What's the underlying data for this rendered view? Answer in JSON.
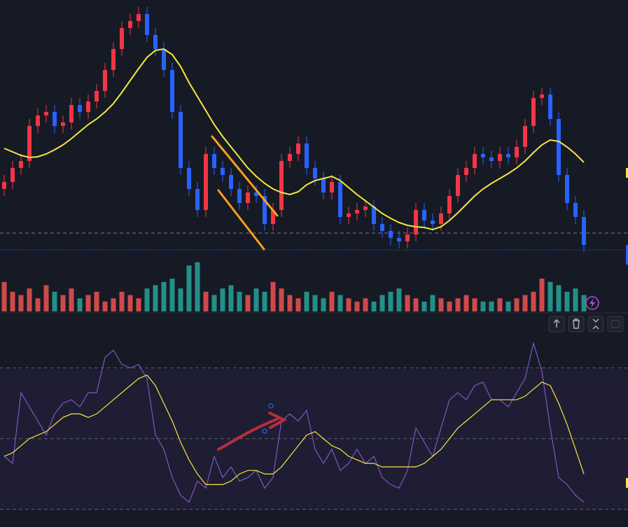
{
  "chart_data": {
    "type": "candlestick",
    "open": [
      100,
      110,
      130,
      140,
      190,
      205,
      210,
      190,
      195,
      220,
      210,
      225,
      240,
      270,
      300,
      330,
      340,
      350,
      320,
      300,
      270,
      210,
      130,
      100,
      70,
      150,
      130,
      120,
      100,
      80,
      95,
      90,
      50,
      70,
      140,
      150,
      165,
      130,
      115,
      95,
      110,
      60,
      65,
      70,
      75,
      50,
      40,
      30,
      25,
      35,
      70,
      55,
      50,
      65,
      90,
      120,
      130,
      150,
      145,
      140,
      150,
      145,
      160,
      190,
      230,
      235,
      200,
      120,
      80,
      60
    ],
    "high": [
      120,
      140,
      150,
      200,
      215,
      220,
      220,
      205,
      230,
      230,
      235,
      250,
      280,
      310,
      340,
      350,
      360,
      360,
      330,
      310,
      280,
      220,
      140,
      110,
      160,
      160,
      140,
      130,
      110,
      105,
      105,
      100,
      80,
      150,
      160,
      175,
      175,
      140,
      125,
      120,
      120,
      75,
      80,
      85,
      85,
      60,
      50,
      40,
      45,
      80,
      80,
      65,
      75,
      100,
      130,
      140,
      160,
      160,
      155,
      160,
      160,
      170,
      200,
      240,
      245,
      245,
      210,
      130,
      90,
      70
    ],
    "low": [
      90,
      100,
      120,
      130,
      180,
      195,
      180,
      180,
      185,
      200,
      200,
      215,
      230,
      260,
      290,
      320,
      330,
      310,
      290,
      260,
      200,
      120,
      90,
      60,
      60,
      120,
      110,
      90,
      70,
      70,
      80,
      40,
      40,
      60,
      130,
      140,
      120,
      105,
      85,
      85,
      50,
      50,
      55,
      60,
      40,
      30,
      20,
      15,
      15,
      25,
      45,
      40,
      40,
      55,
      80,
      110,
      120,
      135,
      130,
      130,
      135,
      135,
      150,
      180,
      220,
      190,
      110,
      70,
      50,
      10
    ],
    "close": [
      110,
      130,
      140,
      190,
      205,
      210,
      190,
      195,
      220,
      210,
      225,
      240,
      270,
      300,
      330,
      340,
      350,
      320,
      300,
      270,
      210,
      130,
      100,
      70,
      150,
      130,
      120,
      100,
      80,
      95,
      90,
      50,
      70,
      140,
      150,
      165,
      130,
      115,
      95,
      110,
      60,
      65,
      70,
      75,
      50,
      40,
      30,
      25,
      35,
      70,
      55,
      50,
      65,
      90,
      120,
      130,
      150,
      145,
      140,
      150,
      145,
      160,
      190,
      230,
      235,
      200,
      120,
      80,
      60,
      20
    ],
    "ylim": [
      0,
      370
    ],
    "up_color": "#f23645",
    "down_color": "#2962ff",
    "ma": {
      "color": "#f5e642",
      "values": [
        158,
        153,
        148,
        145,
        146,
        150,
        156,
        163,
        172,
        182,
        192,
        200,
        210,
        222,
        238,
        255,
        272,
        288,
        298,
        300,
        292,
        275,
        252,
        232,
        212,
        192,
        175,
        160,
        145,
        130,
        118,
        108,
        100,
        95,
        92,
        96,
        106,
        112,
        115,
        118,
        112,
        102,
        92,
        83,
        74,
        65,
        58,
        52,
        48,
        46,
        45,
        42,
        46,
        55,
        66,
        78,
        90,
        100,
        108,
        115,
        122,
        130,
        140,
        152,
        163,
        170,
        168,
        160,
        150,
        138
      ]
    },
    "price_lines": [
      37,
      13
    ],
    "volume": {
      "ylim": [
        0,
        80
      ],
      "up_color": "#ef5350",
      "down_color": "#26a69a",
      "values": [
        45,
        30,
        25,
        35,
        20,
        40,
        30,
        25,
        35,
        20,
        25,
        30,
        15,
        20,
        30,
        25,
        20,
        35,
        40,
        45,
        50,
        35,
        70,
        75,
        30,
        25,
        35,
        40,
        30,
        25,
        35,
        30,
        45,
        35,
        25,
        20,
        30,
        25,
        20,
        30,
        25,
        20,
        15,
        20,
        15,
        25,
        30,
        35,
        25,
        20,
        15,
        25,
        20,
        15,
        20,
        25,
        20,
        15,
        15,
        20,
        15,
        20,
        25,
        30,
        50,
        45,
        40,
        30,
        35,
        25
      ]
    },
    "rsi": {
      "ylim": [
        25,
        85
      ],
      "levels": [
        70,
        50,
        30
      ],
      "color": "#7e57c2",
      "ma_color": "#f5e642",
      "values": [
        45,
        43,
        63,
        59,
        55,
        51,
        57,
        60,
        61,
        59,
        63,
        63,
        73,
        75,
        71,
        70,
        71,
        67,
        51,
        47,
        39,
        34,
        32,
        38,
        36,
        45,
        39,
        42,
        38,
        39,
        41,
        36,
        39,
        55,
        57,
        55,
        58,
        47,
        43,
        47,
        41,
        43,
        47,
        43,
        45,
        39,
        37,
        36,
        41,
        53,
        49,
        45,
        53,
        61,
        63,
        61,
        65,
        66,
        61,
        61,
        59,
        63,
        67,
        77,
        69,
        53,
        39,
        37,
        34,
        32
      ],
      "ma": [
        45,
        46,
        48,
        50,
        51,
        52,
        54,
        56,
        57,
        57,
        56,
        57,
        59,
        61,
        63,
        65,
        67,
        68,
        65,
        60,
        55,
        49,
        44,
        40,
        37,
        37,
        37,
        38,
        40,
        41,
        41,
        40,
        40,
        42,
        45,
        48,
        51,
        52,
        50,
        48,
        47,
        45,
        44,
        43,
        43,
        42,
        42,
        42,
        42,
        42,
        43,
        45,
        47,
        50,
        53,
        55,
        57,
        59,
        61,
        61,
        61,
        61,
        62,
        64,
        66,
        65,
        60,
        54,
        47,
        40
      ]
    }
  }
}
